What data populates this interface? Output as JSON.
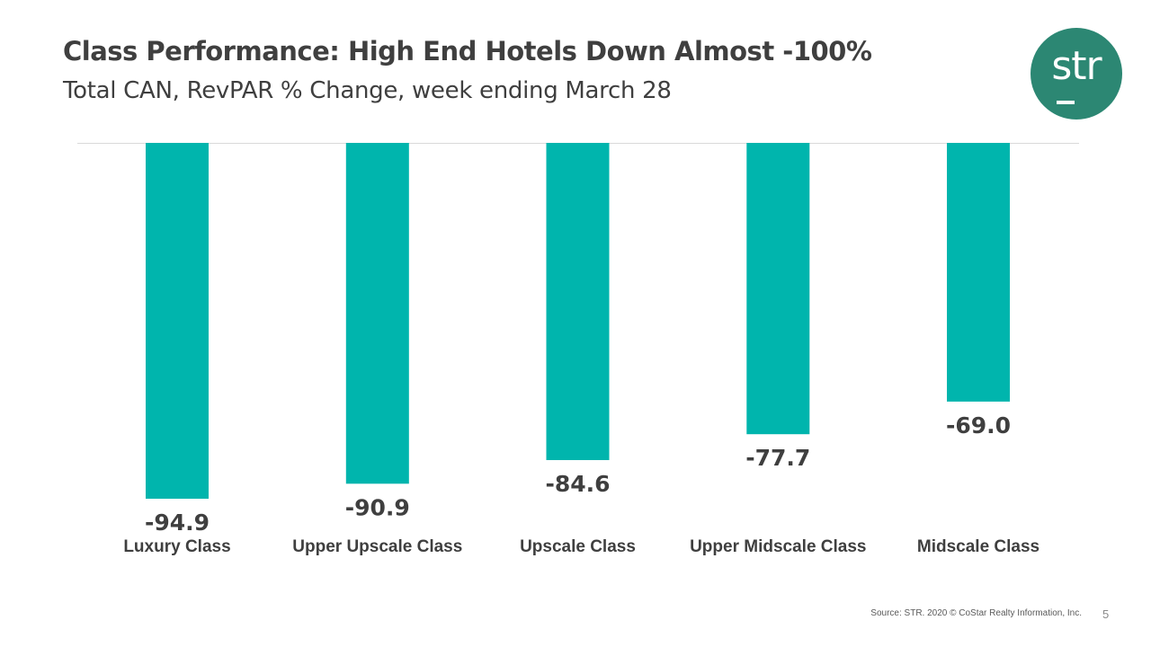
{
  "slide": {
    "title": "Class Performance: High End Hotels Down Almost -100%",
    "subtitle": "Total CAN, RevPAR % Change, week ending March 28",
    "logo_text": "str",
    "source": "Source: STR. 2020 © CoStar Realty Information, Inc.",
    "page_number": "5"
  },
  "colors": {
    "bar": "#00b5ad",
    "logo": "#2c8773",
    "text": "#3f3f3f",
    "baseline": "#d9d9d9"
  },
  "chart_data": {
    "type": "bar",
    "categories": [
      "Luxury Class",
      "Upper Upscale Class",
      "Upscale Class",
      "Upper Midscale Class",
      "Midscale Class"
    ],
    "values": [
      -94.9,
      -90.9,
      -84.6,
      -77.7,
      -69.0
    ],
    "value_labels": [
      "-94.9",
      "-90.9",
      "-84.6",
      "-77.7",
      "-69.0"
    ],
    "title": "Class Performance: High End Hotels Down Almost -100%",
    "subtitle": "Total CAN, RevPAR % Change, week ending March 28",
    "xlabel": "",
    "ylabel": "",
    "ylim": [
      -100,
      0
    ],
    "grid": false,
    "legend": "none"
  }
}
